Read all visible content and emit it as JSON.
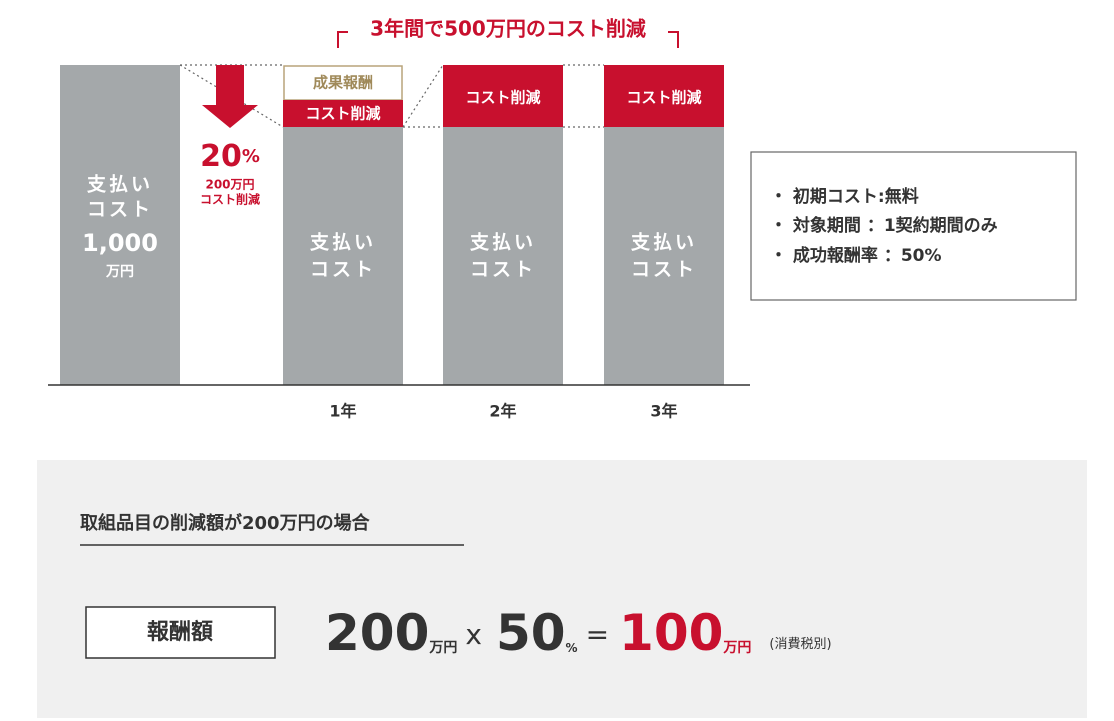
{
  "header": {
    "title": "3年間で500万円のコスト削減"
  },
  "initial_bar": {
    "line1": "支払い",
    "line2": "コスト",
    "amount": "1,000",
    "unit": "万円"
  },
  "reduction": {
    "number": "20",
    "unit": "%",
    "amount": "200万円",
    "label": "コスト削減"
  },
  "years": [
    {
      "fee": "成果報酬",
      "saving": "コスト削減",
      "line1": "支払い",
      "line2": "コスト",
      "label": "1年"
    },
    {
      "saving": "コスト削減",
      "line1": "支払い",
      "line2": "コスト",
      "label": "2年"
    },
    {
      "saving": "コスト削減",
      "line1": "支払い",
      "line2": "コスト",
      "label": "3年"
    }
  ],
  "conditions": [
    "・ 初期コスト:無料",
    "・ 対象期間 ：1契約期間のみ",
    "・ 成功報酬率 ：50%"
  ],
  "example": {
    "title": "取組品目の削減額が200万円の場合",
    "badge": "報酬額",
    "formula": {
      "a": "200",
      "a_unit": "万円",
      "times": "x",
      "b": "50",
      "b_unit": "%",
      "equals": "=",
      "result": "100",
      "result_unit": "万円",
      "note": "(消費税別)"
    }
  }
}
